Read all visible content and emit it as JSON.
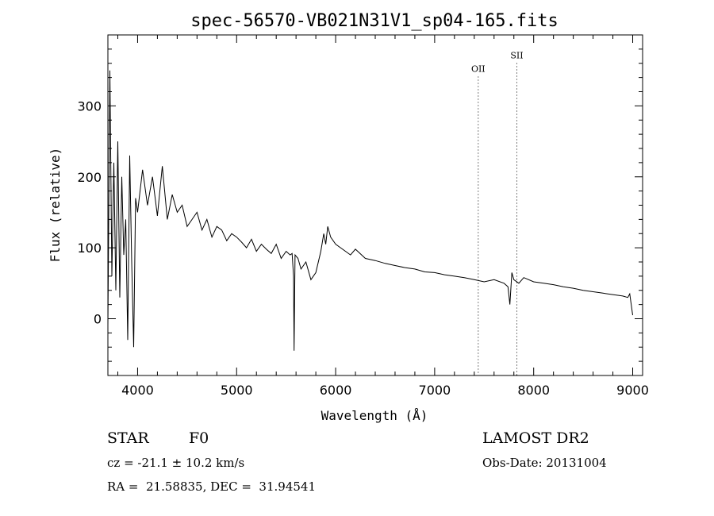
{
  "chart_data": {
    "type": "line",
    "title": "spec-56570-VB021N31V1_sp04-165.fits",
    "xlabel": "Wavelength (Å)",
    "ylabel": "Flux (relative)",
    "xlim": [
      3700,
      9100
    ],
    "ylim": [
      -80,
      400
    ],
    "xticks": [
      4000,
      5000,
      6000,
      7000,
      8000,
      9000
    ],
    "yticks": [
      0,
      100,
      200,
      300
    ],
    "grid": false,
    "line_color": "#000000",
    "series": [
      {
        "name": "flux",
        "x": [
          3700,
          3720,
          3740,
          3760,
          3780,
          3800,
          3820,
          3840,
          3860,
          3880,
          3900,
          3920,
          3940,
          3960,
          3980,
          4000,
          4050,
          4100,
          4150,
          4200,
          4250,
          4300,
          4350,
          4400,
          4450,
          4500,
          4550,
          4600,
          4650,
          4700,
          4750,
          4800,
          4850,
          4900,
          4950,
          5000,
          5050,
          5100,
          5150,
          5200,
          5250,
          5300,
          5350,
          5400,
          5450,
          5500,
          5540,
          5560,
          5575,
          5580,
          5590,
          5620,
          5650,
          5700,
          5750,
          5800,
          5850,
          5880,
          5900,
          5920,
          5950,
          6000,
          6050,
          6100,
          6150,
          6200,
          6300,
          6400,
          6500,
          6600,
          6700,
          6800,
          6900,
          7000,
          7100,
          7200,
          7300,
          7400,
          7500,
          7600,
          7700,
          7740,
          7760,
          7780,
          7800,
          7850,
          7900,
          8000,
          8100,
          8200,
          8300,
          8400,
          8500,
          8600,
          8700,
          8800,
          8900,
          8950,
          8970,
          9000
        ],
        "y": [
          -10,
          350,
          60,
          220,
          40,
          250,
          30,
          200,
          90,
          140,
          -30,
          230,
          80,
          -40,
          170,
          150,
          210,
          160,
          200,
          145,
          215,
          140,
          175,
          150,
          160,
          130,
          140,
          150,
          125,
          140,
          115,
          130,
          125,
          110,
          120,
          115,
          108,
          100,
          112,
          95,
          105,
          98,
          92,
          105,
          85,
          95,
          90,
          92,
          60,
          -45,
          90,
          85,
          70,
          80,
          55,
          65,
          95,
          120,
          105,
          130,
          115,
          105,
          100,
          95,
          90,
          98,
          85,
          82,
          78,
          75,
          72,
          70,
          66,
          65,
          62,
          60,
          58,
          55,
          52,
          55,
          50,
          45,
          20,
          65,
          55,
          50,
          58,
          52,
          50,
          48,
          45,
          43,
          40,
          38,
          36,
          34,
          32,
          30,
          35,
          5
        ]
      }
    ],
    "line_markers": [
      {
        "label": "OII",
        "x": 7440,
        "y": 348
      },
      {
        "label": "SII",
        "x": 7830,
        "y": 367
      }
    ]
  },
  "info": {
    "object_type": "STAR",
    "subclass": "F0",
    "survey": "LAMOST DR2",
    "redshift_line": "cz = -21.1 ± 10.2 km/s",
    "obs_date_line": "Obs-Date: 20131004",
    "coords_line": "RA =  21.58835, DEC =  31.94541"
  }
}
